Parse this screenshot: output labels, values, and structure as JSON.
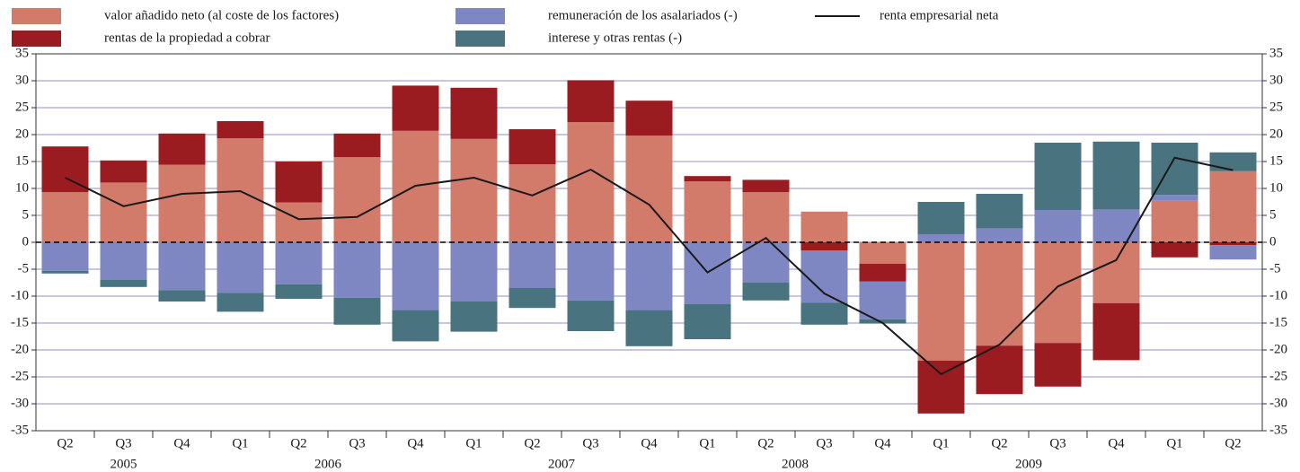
{
  "chart_data": {
    "type": "bar",
    "stacked": true,
    "categories": [
      "Q2",
      "Q3",
      "Q4",
      "Q1",
      "Q2",
      "Q3",
      "Q4",
      "Q1",
      "Q2",
      "Q3",
      "Q4",
      "Q1",
      "Q2",
      "Q3",
      "Q4",
      "Q1",
      "Q2",
      "Q3",
      "Q4",
      "Q1",
      "Q2"
    ],
    "groups": [
      {
        "label": "2005",
        "count": 3
      },
      {
        "label": "2006",
        "count": 4
      },
      {
        "label": "2007",
        "count": 4
      },
      {
        "label": "2008",
        "count": 4
      },
      {
        "label": "2009",
        "count": 4
      },
      {
        "label": null,
        "count": 2
      }
    ],
    "series": [
      {
        "name": "valor añadido neto (al coste de los factores)",
        "color": "#d27b6b",
        "values": [
          9.3,
          11.1,
          14.4,
          19.3,
          7.4,
          15.8,
          20.7,
          19.2,
          14.5,
          22.3,
          19.8,
          11.3,
          9.3,
          5.7,
          -4,
          -22,
          -19.2,
          -18.7,
          -11.3,
          7.7,
          13.2
        ]
      },
      {
        "name": "rentas de la propiedad a cobrar",
        "color": "#9b1c20",
        "values": [
          8.5,
          4.1,
          5.8,
          3.2,
          7.6,
          4.4,
          8.4,
          9.5,
          6.5,
          7.8,
          6.5,
          1,
          2.3,
          -1.5,
          -3.3,
          -9.8,
          -9,
          -8.1,
          -10.6,
          -2.8,
          -0.5
        ]
      },
      {
        "name": "remuneración de los asalariados (-)",
        "color": "#7f87c2",
        "values": [
          -5.3,
          -7,
          -8.9,
          -9.4,
          -7.8,
          -10.3,
          -12.6,
          -11,
          -8.5,
          -10.8,
          -12.6,
          -11.5,
          -7.5,
          -9.7,
          -7,
          1.5,
          2.6,
          6,
          6.1,
          1.1,
          -2.7
        ]
      },
      {
        "name": "interese y otras rentas (-)",
        "color": "#48737f",
        "values": [
          -0.5,
          -1.3,
          -2.1,
          -3.5,
          -2.7,
          -5,
          -5.8,
          -5.6,
          -3.7,
          -5.7,
          -6.7,
          -6.5,
          -3.3,
          -4.1,
          -0.8,
          6,
          6.4,
          12.5,
          12.6,
          9.7,
          3.5
        ]
      },
      {
        "name": "renta empresarial neta",
        "type": "line",
        "color": "#1a1a1a",
        "values": [
          12,
          6.7,
          9,
          9.5,
          4.3,
          4.7,
          10.5,
          12,
          8.7,
          13.5,
          7,
          -5.6,
          0.8,
          -9.5,
          -15,
          -24.5,
          -19,
          -8.2,
          -3.3,
          15.7,
          13.4
        ]
      }
    ],
    "ylim": [
      -35,
      35
    ],
    "yticks": [
      -35,
      -30,
      -25,
      -20,
      -15,
      -10,
      -5,
      0,
      5,
      10,
      15,
      20,
      25,
      30,
      35
    ],
    "y2lim": [
      -35,
      35
    ],
    "y2ticks": [
      -35,
      -30,
      -25,
      -20,
      -15,
      -10,
      -5,
      0,
      5,
      10,
      15,
      20,
      25,
      30,
      35
    ],
    "grid": true
  }
}
